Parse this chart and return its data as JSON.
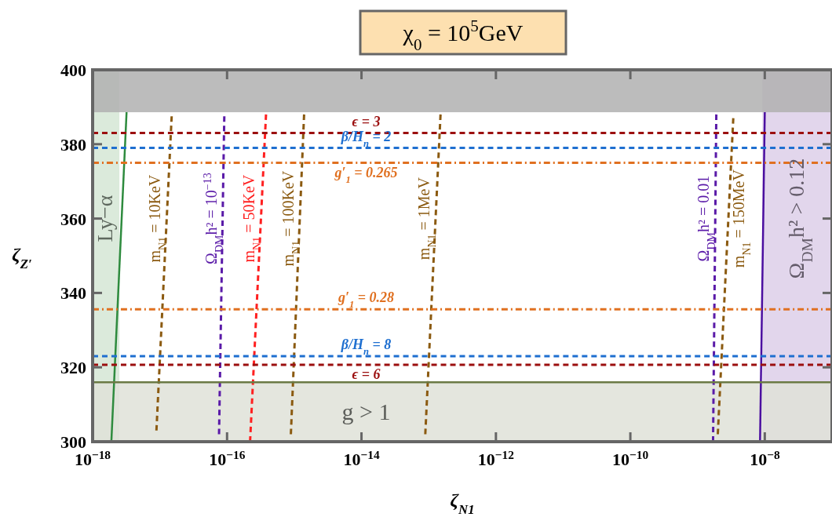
{
  "chart_data": {
    "type": "line",
    "title": "χ$_{0}$ = 10$^{5}$GeV",
    "xlabel": "ζ$_{N1}$",
    "ylabel": "ζ$_{Z′}$",
    "log": "x",
    "xlim": [
      1e-18,
      1e-07
    ],
    "ylim": [
      300,
      400
    ],
    "xticks": [
      {
        "value": 1e-18,
        "label": "10$^{−18}$"
      },
      {
        "value": 1e-16,
        "label": "10$^{−16}$"
      },
      {
        "value": 1e-14,
        "label": "10$^{−14}$"
      },
      {
        "value": 1e-12,
        "label": "10$^{−12}$"
      },
      {
        "value": 1e-10,
        "label": "10$^{−10}$"
      },
      {
        "value": 1e-08,
        "label": "10$^{−8}$"
      }
    ],
    "yticks": [
      300,
      320,
      340,
      360,
      380,
      400
    ],
    "grid": false,
    "legend": false,
    "marker": "none",
    "series": [
      {
        "color": "#2e8b3e",
        "line_style": "solid",
        "x": [
          1.9e-18,
          3.2e-18
        ],
        "values": [
          300,
          388.6
        ]
      },
      {
        "name": "m$_{N1}$ = 10KeV",
        "color": "#8b5a10",
        "line_style": "dashed",
        "x": [
          8.9e-18,
          1.5e-17
        ],
        "values": [
          303,
          387.5
        ]
      },
      {
        "name": "Ω$_{DM}$h² = 10$^{−13}$",
        "color": "#5a1aa8",
        "line_style": "dashed",
        "x": [
          7.6e-17,
          9.1e-17
        ],
        "values": [
          302,
          387.5
        ]
      },
      {
        "name": "m$_{N1}$ = 50KeV",
        "color": "#ff2020",
        "line_style": "dashed",
        "x": [
          2.2e-16,
          3.8e-16
        ],
        "values": [
          300,
          388
        ]
      },
      {
        "name": "m$_{N1}$ = 100KeV",
        "color": "#8b5a10",
        "line_style": "dashed",
        "x": [
          8.9e-16,
          1.4e-15
        ],
        "values": [
          302,
          388
        ]
      },
      {
        "name": "m$_{N1}$ = 1MeV",
        "color": "#8b5a10",
        "line_style": "dashed",
        "x": [
          8.9e-14,
          1.5e-13
        ],
        "values": [
          302,
          388
        ]
      },
      {
        "name": "Ω$_{DM}$h² = 0.01",
        "color": "#5a1aa8",
        "line_style": "dashed",
        "x": [
          1.7e-09,
          1.9e-09
        ],
        "values": [
          300,
          388
        ]
      },
      {
        "name": "m$_{N1}$ = 150MeV",
        "color": "#8b5a10",
        "line_style": "dashed",
        "x": [
          2e-09,
          3.4e-09
        ],
        "values": [
          302,
          387
        ]
      },
      {
        "color": "#4b0fa0",
        "line_style": "solid",
        "x": [
          8.5e-09,
          1e-08
        ],
        "values": [
          300,
          388.6
        ]
      },
      {
        "name": "ϵ = 3",
        "color": "#9b0f0f",
        "line_style": "dashed",
        "x": [
          1e-18,
          1e-07
        ],
        "values": [
          383,
          383
        ]
      },
      {
        "name": "β/H$_{n}$ = 2",
        "color": "#1e6fd0",
        "line_style": "dashed",
        "x": [
          1e-18,
          1e-07
        ],
        "values": [
          379,
          379
        ]
      },
      {
        "name": "g′$_{1}$ = 0.265",
        "color": "#e07020",
        "line_style": "dashdot",
        "x": [
          1e-18,
          1e-07
        ],
        "values": [
          375,
          375
        ]
      },
      {
        "name": "g′$_{1}$ = 0.28",
        "color": "#e07020",
        "line_style": "dashdot",
        "x": [
          1e-18,
          1e-07
        ],
        "values": [
          335.6,
          335.6
        ]
      },
      {
        "name": "β/H$_{n}$ = 8",
        "color": "#1e6fd0",
        "line_style": "dashed",
        "x": [
          1e-18,
          1e-07
        ],
        "values": [
          323,
          323
        ]
      },
      {
        "name": "ϵ = 6",
        "color": "#9b0f0f",
        "line_style": "dashed",
        "x": [
          1e-18,
          1e-07
        ],
        "values": [
          320.7,
          320.7
        ]
      },
      {
        "color": "#6b7a45",
        "line_style": "solid",
        "x": [
          1e-18,
          1e-07
        ],
        "values": [
          316,
          316
        ]
      }
    ],
    "bands": [
      {
        "axis": "x",
        "from": 1e-18,
        "to": 2.5e-18,
        "label": "Ly−α",
        "color": "#cfe3cf"
      },
      {
        "axis": "x",
        "from": 9.2e-09,
        "to": 1e-07,
        "label": "Ω$_{DM}$h² > 0.12",
        "color": "#d8c8e6"
      },
      {
        "axis": "y",
        "from": 300,
        "to": 316,
        "label": "g > 1",
        "color": "#dfe2d8"
      },
      {
        "axis": "y",
        "from": 388.6,
        "to": 400,
        "color": "#b0b0b0"
      }
    ]
  }
}
